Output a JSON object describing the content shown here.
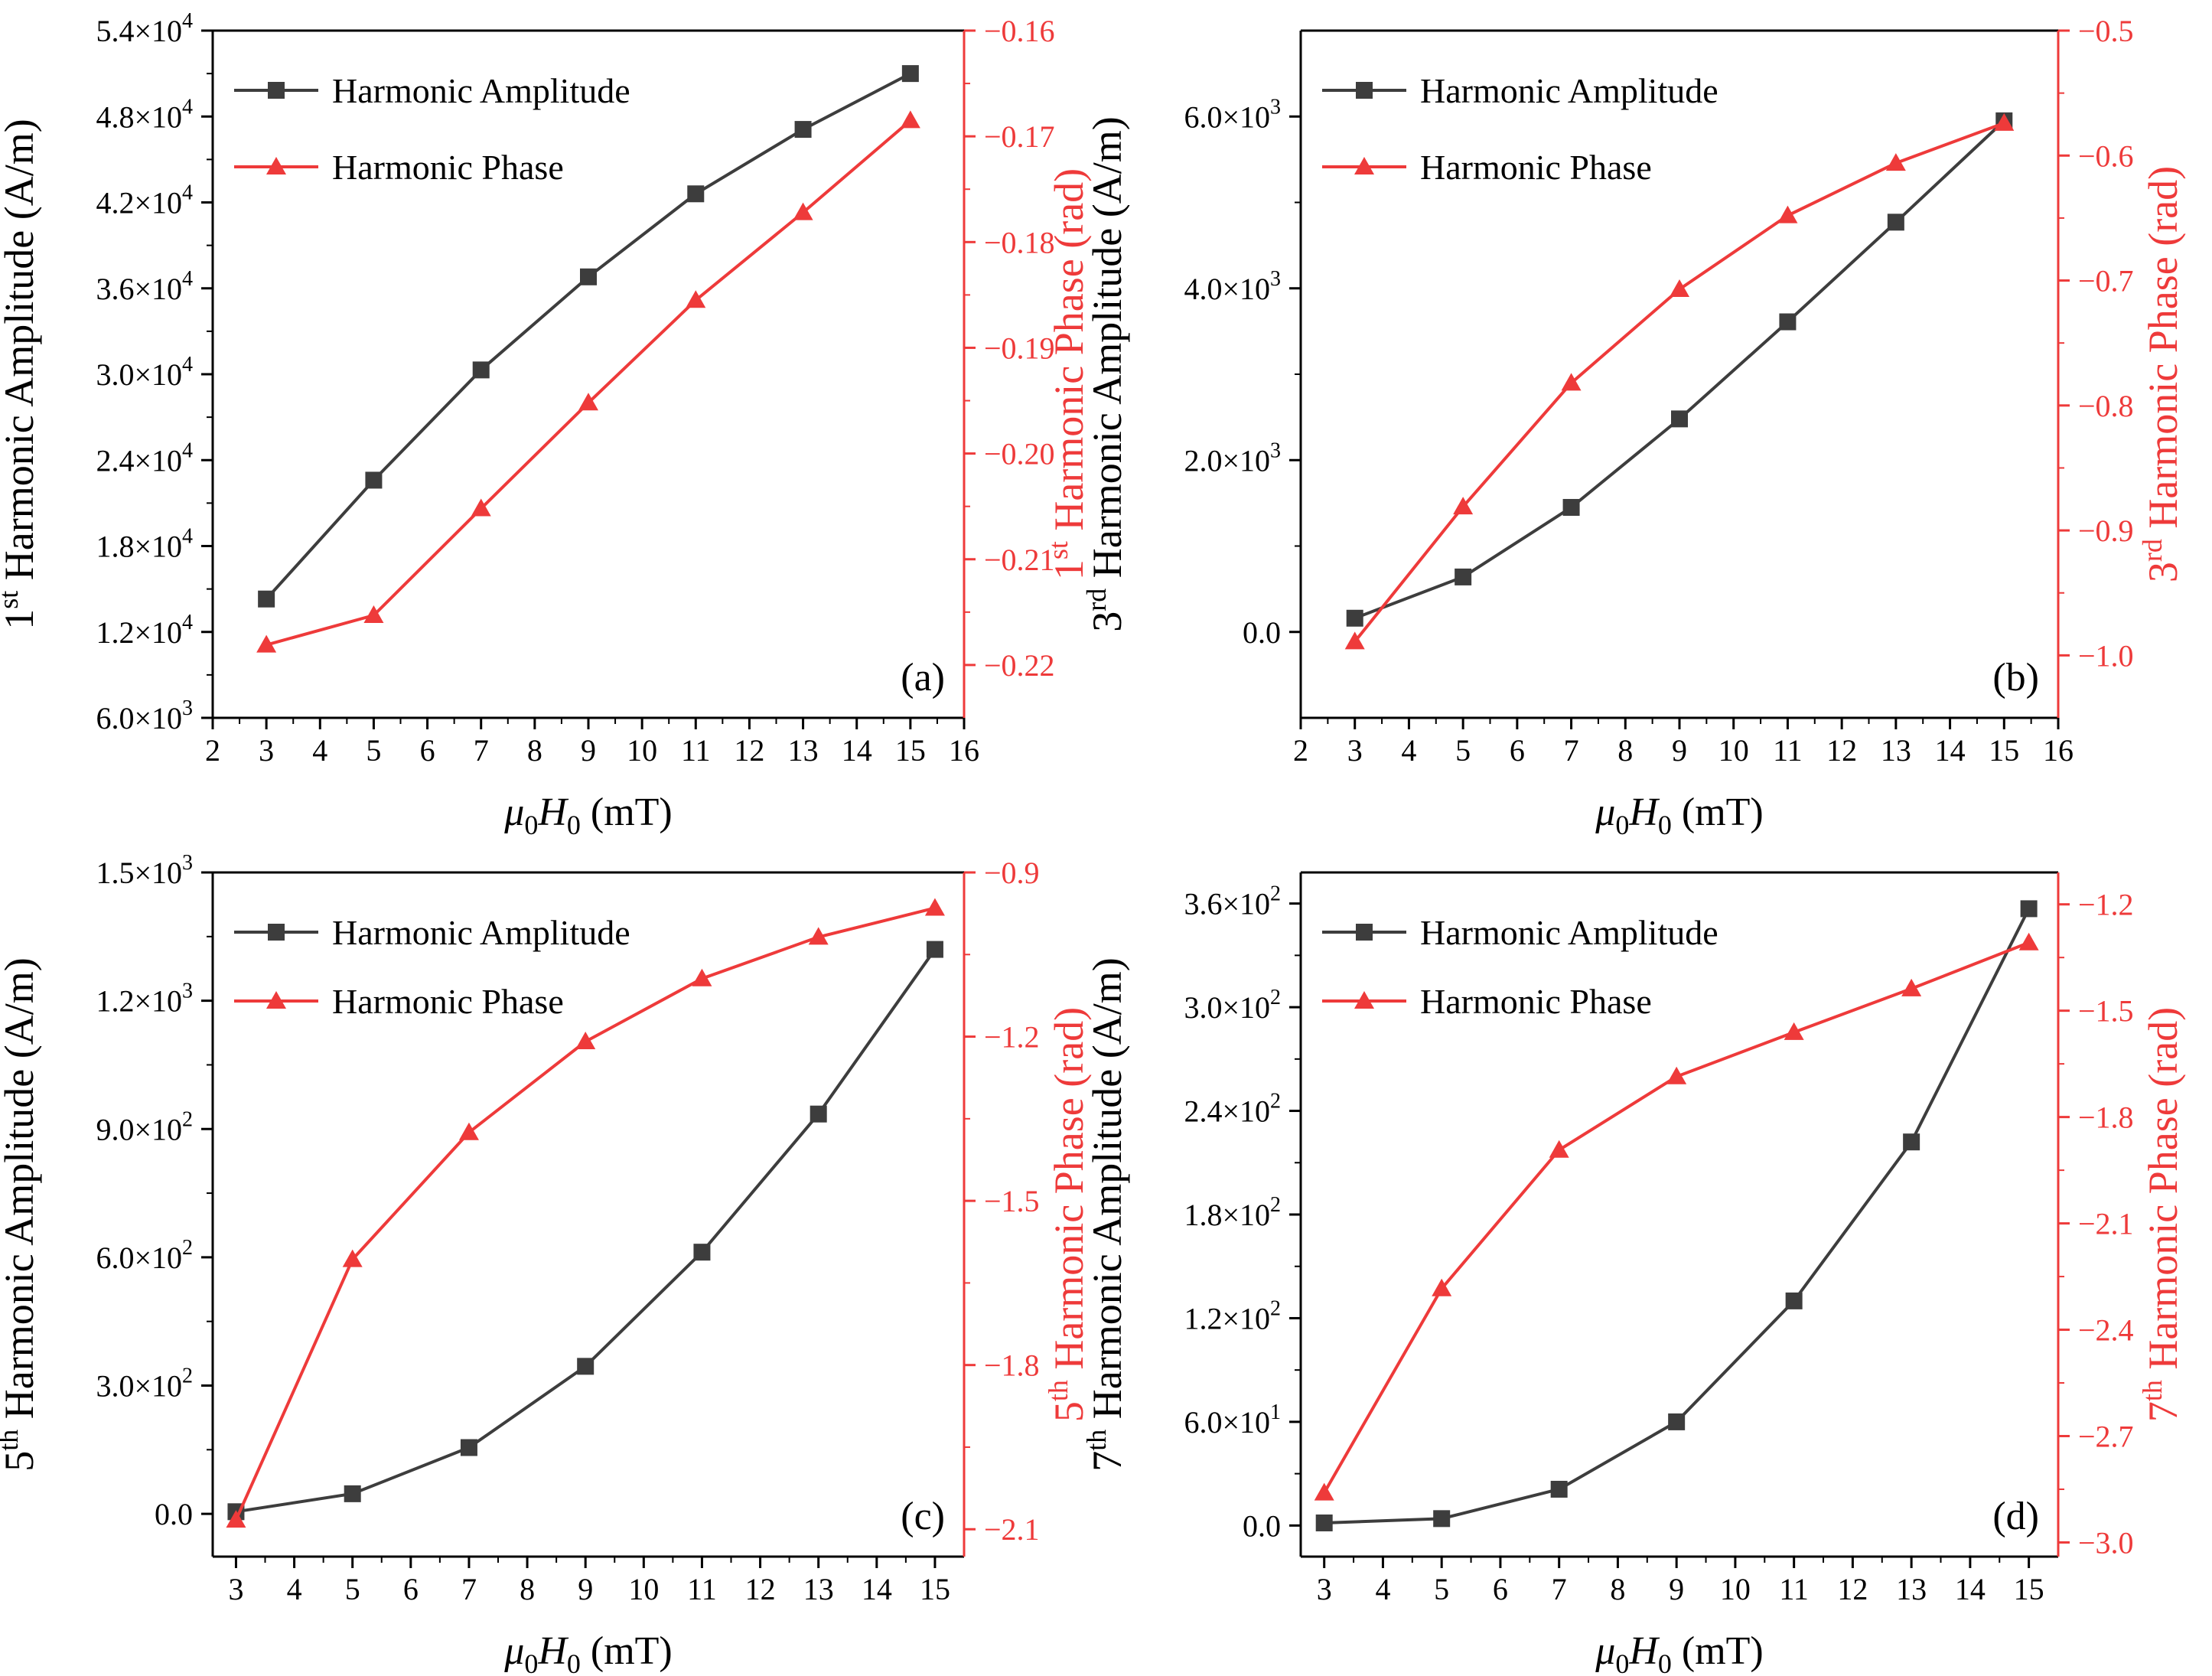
{
  "figure": {
    "xlabel_sym": "μ",
    "xlabel_sub0": "0",
    "xlabel_H": "H",
    "xlabel_unit": " (mT)",
    "legend_amp": "Harmonic Amplitude",
    "legend_phase": "Harmonic Phase",
    "colors": {
      "amplitude": "#3d3d3d",
      "phase": "#ee3a3a",
      "axis": "#000000"
    }
  },
  "chart_data": [
    {
      "type": "line",
      "panel": "(a)",
      "x": [
        3,
        5,
        7,
        9,
        11,
        13,
        15
      ],
      "xlim": [
        2,
        16
      ],
      "xticks": [
        "2",
        "3",
        "4",
        "5",
        "6",
        "7",
        "8",
        "9",
        "10",
        "11",
        "12",
        "13",
        "14",
        "15",
        "16"
      ],
      "series": [
        {
          "name": "Harmonic Amplitude",
          "axis": "left",
          "values": [
            14300,
            22600,
            30300,
            36800,
            42600,
            47100,
            51000
          ]
        },
        {
          "name": "Harmonic Phase",
          "axis": "right",
          "values": [
            -0.2181,
            -0.2153,
            -0.2052,
            -0.1952,
            -0.1855,
            -0.1772,
            -0.1685
          ]
        }
      ],
      "ylim_left": [
        6000,
        54000
      ],
      "yticks_left": [
        {
          "mant": "6.0×10",
          "exp": "3"
        },
        {
          "mant": "1.2×10",
          "exp": "4"
        },
        {
          "mant": "1.8×10",
          "exp": "4"
        },
        {
          "mant": "2.4×10",
          "exp": "4"
        },
        {
          "mant": "3.0×10",
          "exp": "4"
        },
        {
          "mant": "3.6×10",
          "exp": "4"
        },
        {
          "mant": "4.2×10",
          "exp": "4"
        },
        {
          "mant": "4.8×10",
          "exp": "4"
        },
        {
          "mant": "5.4×10",
          "exp": "4"
        }
      ],
      "ylim_right": [
        -0.225,
        -0.16
      ],
      "yticks_right": [
        "-0.22",
        "-0.21",
        "-0.20",
        "-0.19",
        "-0.18",
        "-0.17",
        "-0.16"
      ],
      "ylabel_left": {
        "pre": "1",
        "sup": "st",
        "text": " Harmonic Amplitude (A/m)"
      },
      "ylabel_right": {
        "pre": "1",
        "sup": "st",
        "text": " Harmonic Phase (rad)"
      }
    },
    {
      "type": "line",
      "panel": "(b)",
      "x": [
        3,
        5,
        7,
        9,
        11,
        13,
        15
      ],
      "xlim": [
        2,
        16
      ],
      "xticks": [
        "2",
        "3",
        "4",
        "5",
        "6",
        "7",
        "8",
        "9",
        "10",
        "11",
        "12",
        "13",
        "14",
        "15",
        "16"
      ],
      "series": [
        {
          "name": "Harmonic Amplitude",
          "axis": "left",
          "values": [
            160,
            640,
            1450,
            2480,
            3610,
            4770,
            5950
          ]
        },
        {
          "name": "Harmonic Phase",
          "axis": "right",
          "values": [
            -0.989,
            -0.881,
            -0.782,
            -0.707,
            -0.648,
            -0.606,
            -0.574
          ]
        }
      ],
      "ylim_left": [
        -1000,
        7000
      ],
      "yticks_left": [
        {
          "mant": "0.0",
          "exp": ""
        },
        {
          "mant": "2.0×10",
          "exp": "3"
        },
        {
          "mant": "4.0×10",
          "exp": "3"
        },
        {
          "mant": "6.0×10",
          "exp": "3"
        }
      ],
      "ylim_right": [
        -1.05,
        -0.5
      ],
      "yticks_right": [
        "-1.0",
        "-0.9",
        "-0.8",
        "-0.7",
        "-0.6",
        "-0.5"
      ],
      "ylabel_left": {
        "pre": "3",
        "sup": "rd",
        "text": " Harmonic Amplitude (A/m)"
      },
      "ylabel_right": {
        "pre": "3",
        "sup": "rd",
        "text": " Harmonic Phase (rad)"
      }
    },
    {
      "type": "line",
      "panel": "(c)",
      "x": [
        3,
        5,
        7,
        9,
        11,
        13,
        15
      ],
      "xlim": [
        2.6,
        15.5
      ],
      "xticks": [
        "3",
        "4",
        "5",
        "6",
        "7",
        "8",
        "9",
        "10",
        "11",
        "12",
        "13",
        "14",
        "15"
      ],
      "series": [
        {
          "name": "Harmonic Amplitude",
          "axis": "left",
          "values": [
            5,
            47,
            155,
            345,
            612,
            935,
            1320
          ]
        },
        {
          "name": "Harmonic Phase",
          "axis": "right",
          "values": [
            -2.083,
            -1.607,
            -1.375,
            -1.209,
            -1.094,
            -1.018,
            -0.965
          ]
        }
      ],
      "ylim_left": [
        -100,
        1500
      ],
      "yticks_left": [
        {
          "mant": "0.0",
          "exp": ""
        },
        {
          "mant": "3.0×10",
          "exp": "2"
        },
        {
          "mant": "6.0×10",
          "exp": "2"
        },
        {
          "mant": "9.0×10",
          "exp": "2"
        },
        {
          "mant": "1.2×10",
          "exp": "3"
        },
        {
          "mant": "1.5×10",
          "exp": "3"
        }
      ],
      "ylim_right": [
        -2.15,
        -0.9
      ],
      "yticks_right": [
        "-2.1",
        "-1.8",
        "-1.5",
        "-1.2",
        "-0.9"
      ],
      "ylabel_left": {
        "pre": "5",
        "sup": "th",
        "text": " Harmonic Amplitude (A/m)"
      },
      "ylabel_right": {
        "pre": "5",
        "sup": "th",
        "text": " Harmonic Phase (rad)"
      }
    },
    {
      "type": "line",
      "panel": "(d)",
      "x": [
        3,
        5,
        7,
        9,
        11,
        13,
        15
      ],
      "xlim": [
        2.6,
        15.5
      ],
      "xticks": [
        "3",
        "4",
        "5",
        "6",
        "7",
        "8",
        "9",
        "10",
        "11",
        "12",
        "13",
        "14",
        "15"
      ],
      "series": [
        {
          "name": "Harmonic Amplitude",
          "axis": "left",
          "values": [
            1.5,
            4,
            21,
            60,
            130,
            222,
            357
          ]
        },
        {
          "name": "Harmonic Phase",
          "axis": "right",
          "values": [
            -2.86,
            -2.284,
            -1.893,
            -1.686,
            -1.561,
            -1.438,
            -1.308
          ]
        }
      ],
      "ylim_left": [
        -18,
        378
      ],
      "yticks_left": [
        {
          "mant": "0.0",
          "exp": ""
        },
        {
          "mant": "6.0×10",
          "exp": "1"
        },
        {
          "mant": "1.2×10",
          "exp": "2"
        },
        {
          "mant": "1.8×10",
          "exp": "2"
        },
        {
          "mant": "2.4×10",
          "exp": "2"
        },
        {
          "mant": "3.0×10",
          "exp": "2"
        },
        {
          "mant": "3.6×10",
          "exp": "2"
        }
      ],
      "ylim_right": [
        -3.04,
        -1.11
      ],
      "yticks_right": [
        "-3.0",
        "-2.7",
        "-2.4",
        "-2.1",
        "-1.8",
        "-1.5",
        "-1.2"
      ],
      "ylabel_left": {
        "pre": "7",
        "sup": "th",
        "text": " Harmonic Amplitude (A/m)"
      },
      "ylabel_right": {
        "pre": "7",
        "sup": "th",
        "text": " Harmonic Phase (rad)"
      }
    }
  ]
}
